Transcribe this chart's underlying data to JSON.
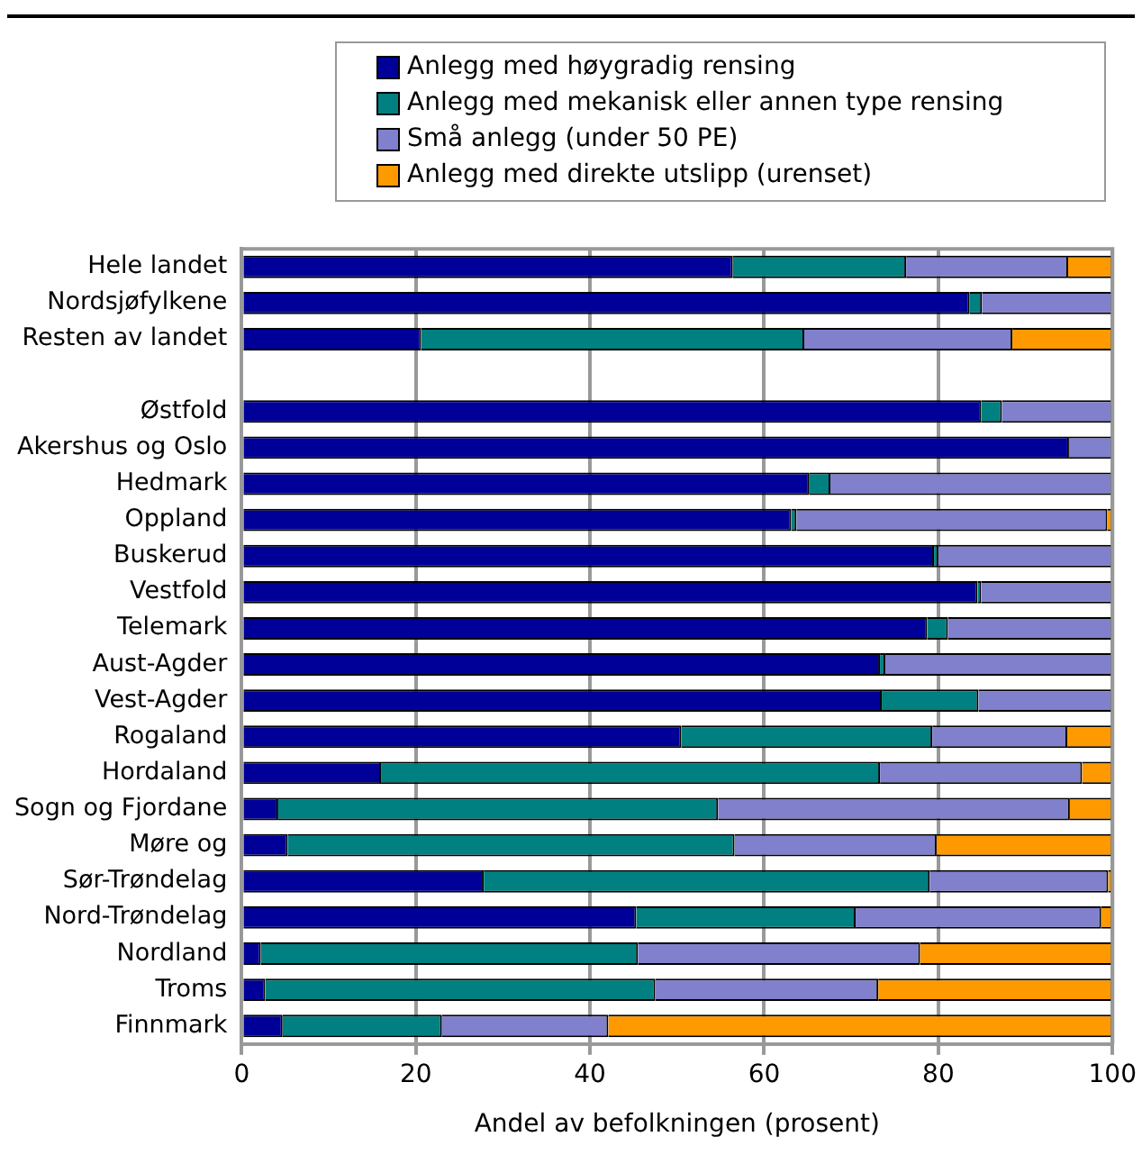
{
  "chart_data": {
    "type": "bar",
    "orientation": "horizontal",
    "stacked": true,
    "xlabel": "Andel av befolkningen (prosent)",
    "legend": "top",
    "grid": "x",
    "categories": [
      "Hele landet",
      "Nordsjøfylkene",
      "Resten av landet",
      null,
      "Østfold",
      "Akershus og Oslo",
      "Hedmark",
      "Oppland",
      "Buskerud",
      "Vestfold",
      "Telemark",
      "Aust-Agder",
      "Vest-Agder",
      "Rogaland",
      "Hordaland",
      "Sogn og Fjordane",
      "Møre og",
      "Sør-Trøndelag",
      "Nord-Trøndelag",
      "Nordland",
      "Troms",
      "Finnmark"
    ],
    "xlim": [
      0,
      100
    ],
    "xticks": [
      0,
      20,
      40,
      60,
      80,
      100
    ],
    "series": [
      {
        "name": "Anlegg med høygradig rensing",
        "color": "#000099",
        "values": [
          56.4,
          83.6,
          20.6,
          null,
          84.9,
          95.0,
          65.2,
          63.1,
          79.5,
          84.5,
          78.7,
          73.3,
          73.5,
          50.5,
          16.0,
          4.2,
          5.3,
          27.8,
          45.3,
          2.2,
          2.7,
          4.7
        ]
      },
      {
        "name": "Anlegg med mekanisk eller annen type rensing",
        "color": "#008080",
        "values": [
          19.9,
          1.4,
          44.0,
          null,
          2.4,
          0,
          2.4,
          0.6,
          0.5,
          0.4,
          2.4,
          0.6,
          11.1,
          28.8,
          57.3,
          50.5,
          51.3,
          51.2,
          25.2,
          43.3,
          44.8,
          18.3
        ]
      },
      {
        "name": "Små anlegg (under 50 PE)",
        "color": "#8080cc",
        "values": [
          18.6,
          15.0,
          23.9,
          null,
          12.7,
          5.0,
          32.4,
          35.7,
          20.0,
          15.1,
          18.9,
          26.1,
          15.4,
          15.5,
          23.2,
          40.4,
          23.2,
          20.5,
          28.2,
          32.4,
          25.6,
          19.1
        ]
      },
      {
        "name": "Anlegg med direkte utslipp (urenset)",
        "color": "#ff9900",
        "values": [
          5.1,
          0,
          11.5,
          null,
          0,
          0,
          0,
          0.6,
          0,
          0,
          0,
          0,
          0,
          5.2,
          3.5,
          4.9,
          20.2,
          0.5,
          1.3,
          22.1,
          26.9,
          57.9
        ]
      }
    ]
  }
}
